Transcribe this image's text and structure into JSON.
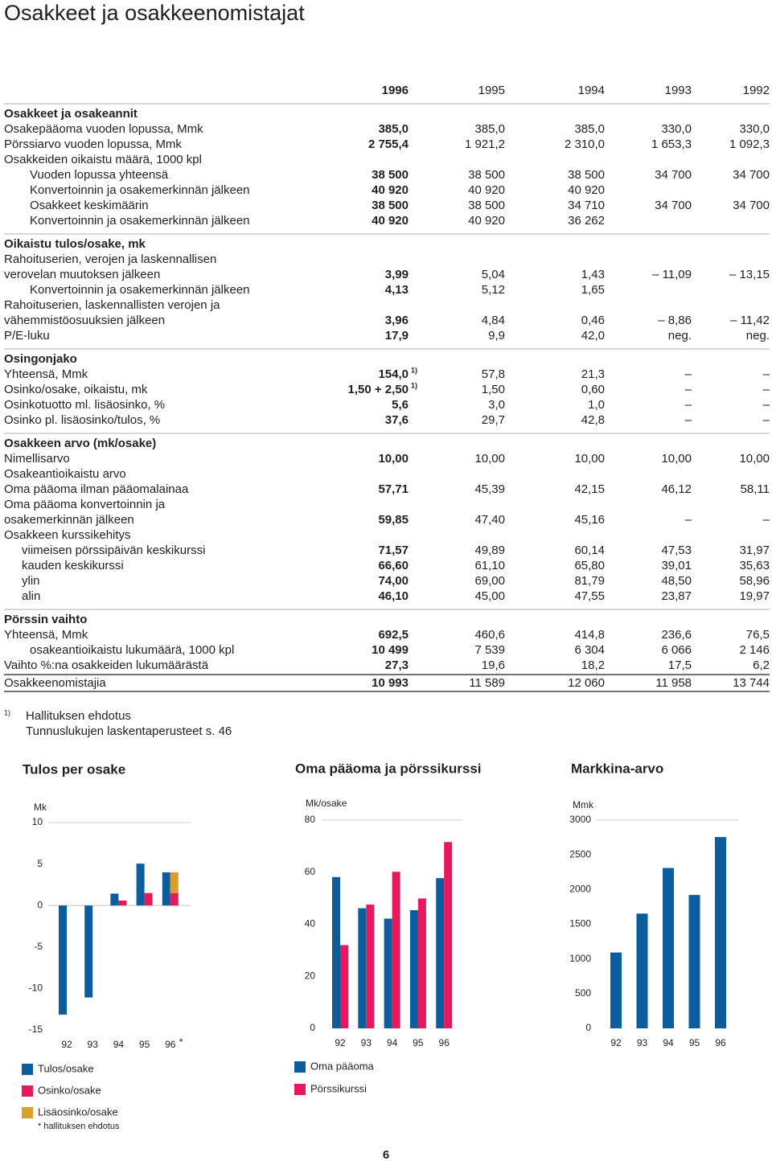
{
  "title": "Osakkeet ja osakkeenomistajat",
  "table": {
    "years": [
      "1996",
      "1995",
      "1994",
      "1993",
      "1992"
    ],
    "sections": [
      {
        "title": "Osakkeet ja osakeannit",
        "rows": [
          {
            "label": "Osakepääoma vuoden lopussa, Mmk",
            "values": [
              "385,0",
              "385,0",
              "385,0",
              "330,0",
              "330,0"
            ]
          },
          {
            "label": "Pörssiarvo vuoden lopussa, Mmk",
            "values": [
              "2 755,4",
              "1 921,2",
              "2 310,0",
              "1 653,3",
              "1 092,3"
            ]
          },
          {
            "label": "Osakkeiden oikaistu määrä, 1000 kpl",
            "values": []
          },
          {
            "label": "Vuoden lopussa yhteensä",
            "values": [
              "38 500",
              "38 500",
              "38 500",
              "34 700",
              "34 700"
            ]
          },
          {
            "label": "Konvertoinnin ja osakemerkinnän jälkeen",
            "values": [
              "40 920",
              "40 920",
              "40 920"
            ]
          },
          {
            "label": "Osakkeet keskimäärin",
            "values": [
              "38 500",
              "38 500",
              "34 710",
              "34 700",
              "34 700"
            ]
          },
          {
            "label": "Konvertoinnin ja osakemerkinnän jälkeen",
            "values": [
              "40 920",
              "40 920",
              "36 262"
            ]
          }
        ]
      },
      {
        "title": "Oikaistu tulos/osake, mk",
        "rows": [
          {
            "label": "Rahoituserien, verojen ja laskennallisen",
            "values": []
          },
          {
            "label": "verovelan muutoksen jälkeen",
            "values": [
              "3,99",
              "5,04",
              "1,43",
              "– 11,09",
              "– 13,15"
            ]
          },
          {
            "label": "Konvertoinnin ja osakemerkinnän jälkeen",
            "values": [
              "4,13",
              "5,12",
              "1,65"
            ]
          },
          {
            "label": "Rahoituserien, laskennallisten verojen ja",
            "values": []
          },
          {
            "label": "vähemmistöosuuksien jälkeen",
            "values": [
              "3,96",
              "4,84",
              "0,46",
              "– 8,86",
              "– 11,42"
            ]
          },
          {
            "label": "P/E-luku",
            "values": [
              "17,9",
              "9,9",
              "42,0",
              "neg.",
              "neg."
            ]
          }
        ]
      },
      {
        "title": "Osingonjako",
        "rows": [
          {
            "label": "Yhteensä, Mmk",
            "values": [
              {
                "text": "154,0",
                "note": "1)"
              },
              "57,8",
              "21,3",
              "–",
              "–"
            ]
          },
          {
            "label": "Osinko/osake, oikaistu, mk",
            "values": [
              {
                "text": "1,50 + 2,50",
                "note": "1)"
              },
              "1,50",
              "0,60",
              "–",
              "–"
            ]
          },
          {
            "label": "Osinkotuotto ml. lisäosinko, %",
            "values": [
              "5,6",
              "3,0",
              "1,0",
              "–",
              "–"
            ]
          },
          {
            "label": "Osinko pl. lisäosinko/tulos, %",
            "values": [
              "37,6",
              "29,7",
              "42,8",
              "–",
              "–"
            ]
          }
        ]
      },
      {
        "title": "Osakkeen arvo (mk/osake)",
        "rows": [
          {
            "label": "Nimellisarvo",
            "values": [
              "10,00",
              "10,00",
              "10,00",
              "10,00",
              "10,00"
            ]
          },
          {
            "label": "Osakeantioikaistu arvo",
            "values": []
          },
          {
            "label": "Oma pääoma ilman pääomalainaa",
            "values": [
              "57,71",
              "45,39",
              "42,15",
              "46,12",
              "58,11"
            ]
          },
          {
            "label": "Oma pääoma konvertoinnin ja",
            "values": []
          },
          {
            "label": "osakemerkinnän jälkeen",
            "values": [
              "59,85",
              "47,40",
              "45,16",
              "–",
              "–"
            ]
          },
          {
            "label": "Osakkeen kurssikehitys",
            "values": []
          },
          {
            "label": "viimeisen pörssipäivän keskikurssi",
            "values": [
              "71,57",
              "49,89",
              "60,14",
              "47,53",
              "31,97"
            ]
          },
          {
            "label": "kauden keskikurssi",
            "values": [
              "66,60",
              "61,10",
              "65,80",
              "39,01",
              "35,63"
            ]
          },
          {
            "label": "ylin",
            "values": [
              "74,00",
              "69,00",
              "81,79",
              "48,50",
              "58,96"
            ]
          },
          {
            "label": "alin",
            "values": [
              "46,10",
              "45,00",
              "47,55",
              "23,87",
              "19,97"
            ]
          }
        ]
      },
      {
        "title": "Pörssin vaihto",
        "rows": [
          {
            "label": "Yhteensä, Mmk",
            "values": [
              "692,5",
              "460,6",
              "414,8",
              "236,6",
              "76,5"
            ]
          },
          {
            "label": "osakeantioikaistu lukumäärä, 1000 kpl",
            "values": [
              "10 499",
              "7 539",
              "6 304",
              "6 066",
              "2 146"
            ]
          },
          {
            "label": "Vaihto %:na osakkeiden lukumäärästä",
            "values": [
              "27,3",
              "19,6",
              "18,2",
              "17,5",
              "6,2"
            ]
          }
        ]
      }
    ],
    "total": {
      "label": "Osakkeenomistajia",
      "values": [
        "10 993",
        "11 589",
        "12 060",
        "11 958",
        "13 744"
      ]
    }
  },
  "footnotes": {
    "mark": "1)",
    "lines": [
      "Hallituksen ehdotus",
      "Tunnuslukujen laskentaperusteet s. 46"
    ]
  },
  "chart_data": [
    {
      "type": "bar",
      "title": "Tulos per osake",
      "y_label": "Mk",
      "categories": [
        "92",
        "93",
        "94",
        "95",
        "96"
      ],
      "annotation": "*",
      "series": [
        {
          "name": "Tulos/osake",
          "color": "#0b5d9e",
          "values": [
            -13.15,
            -11.09,
            1.43,
            5.04,
            3.99
          ]
        },
        {
          "name": "Osinko/osake",
          "color": "#e5195b",
          "values": [
            null,
            null,
            0.6,
            1.5,
            1.5
          ]
        },
        {
          "name": "Lisäosinko/osake",
          "color": "#d6a02a",
          "values": [
            null,
            null,
            null,
            null,
            2.5
          ]
        }
      ],
      "note": "* hallituksen ehdotus",
      "ylim": [
        -15,
        10
      ],
      "yticks": [
        -15,
        -10,
        -5,
        0,
        5,
        10
      ]
    },
    {
      "type": "bar",
      "title": "Oma pääoma ja pörssikurssi",
      "y_label": "Mk/osake",
      "categories": [
        "92",
        "93",
        "94",
        "95",
        "96"
      ],
      "series": [
        {
          "name": "Oma pääoma",
          "color": "#0b5d9e",
          "values": [
            58.11,
            46.12,
            42.15,
            45.39,
            57.71
          ]
        },
        {
          "name": "Pörssikurssi",
          "color": "#e5195b",
          "values": [
            31.97,
            47.53,
            60.14,
            49.89,
            71.57
          ]
        }
      ],
      "ylim": [
        0,
        80
      ],
      "yticks": [
        0,
        20,
        40,
        60,
        80
      ]
    },
    {
      "type": "bar",
      "title": "Markkina-arvo",
      "y_label": "Mmk",
      "categories": [
        "92",
        "93",
        "94",
        "95",
        "96"
      ],
      "series": [
        {
          "name": "Markkina-arvo",
          "color": "#0b5d9e",
          "values": [
            1092.3,
            1653.3,
            2310.0,
            1921.2,
            2755.4
          ]
        }
      ],
      "ylim": [
        0,
        3000
      ],
      "yticks": [
        0,
        500,
        1000,
        1500,
        2000,
        2500,
        3000
      ]
    }
  ],
  "page_number": "6"
}
